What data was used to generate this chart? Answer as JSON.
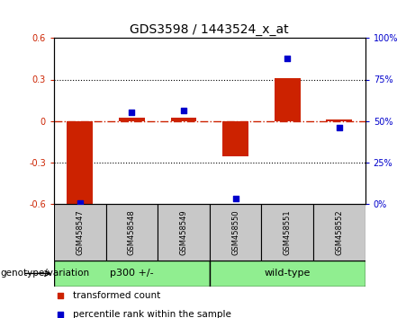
{
  "title": "GDS3598 / 1443524_x_at",
  "samples": [
    "GSM458547",
    "GSM458548",
    "GSM458549",
    "GSM458550",
    "GSM458551",
    "GSM458552"
  ],
  "bar_values": [
    -0.6,
    0.02,
    0.02,
    -0.26,
    0.31,
    0.01
  ],
  "scatter_values": [
    0.5,
    55,
    56,
    3,
    88,
    46
  ],
  "ylim_left": [
    -0.6,
    0.6
  ],
  "ylim_right": [
    0,
    100
  ],
  "yticks_left": [
    -0.6,
    -0.3,
    0,
    0.3,
    0.6
  ],
  "yticks_right": [
    0,
    25,
    50,
    75,
    100
  ],
  "bar_color": "#cc2200",
  "scatter_color": "#0000cc",
  "hline_color": "#cc2200",
  "grid_color": "#000000",
  "group_box_color": "#c8c8c8",
  "green_color": "#90ee90",
  "genotype_label": "genotype/variation",
  "groups": [
    {
      "label": "p300 +/-",
      "start": 0,
      "end": 2
    },
    {
      "label": "wild-type",
      "start": 3,
      "end": 5
    }
  ],
  "legend_items": [
    {
      "label": "transformed count",
      "color": "#cc2200"
    },
    {
      "label": "percentile rank within the sample",
      "color": "#0000cc"
    }
  ],
  "background_color": "#ffffff"
}
